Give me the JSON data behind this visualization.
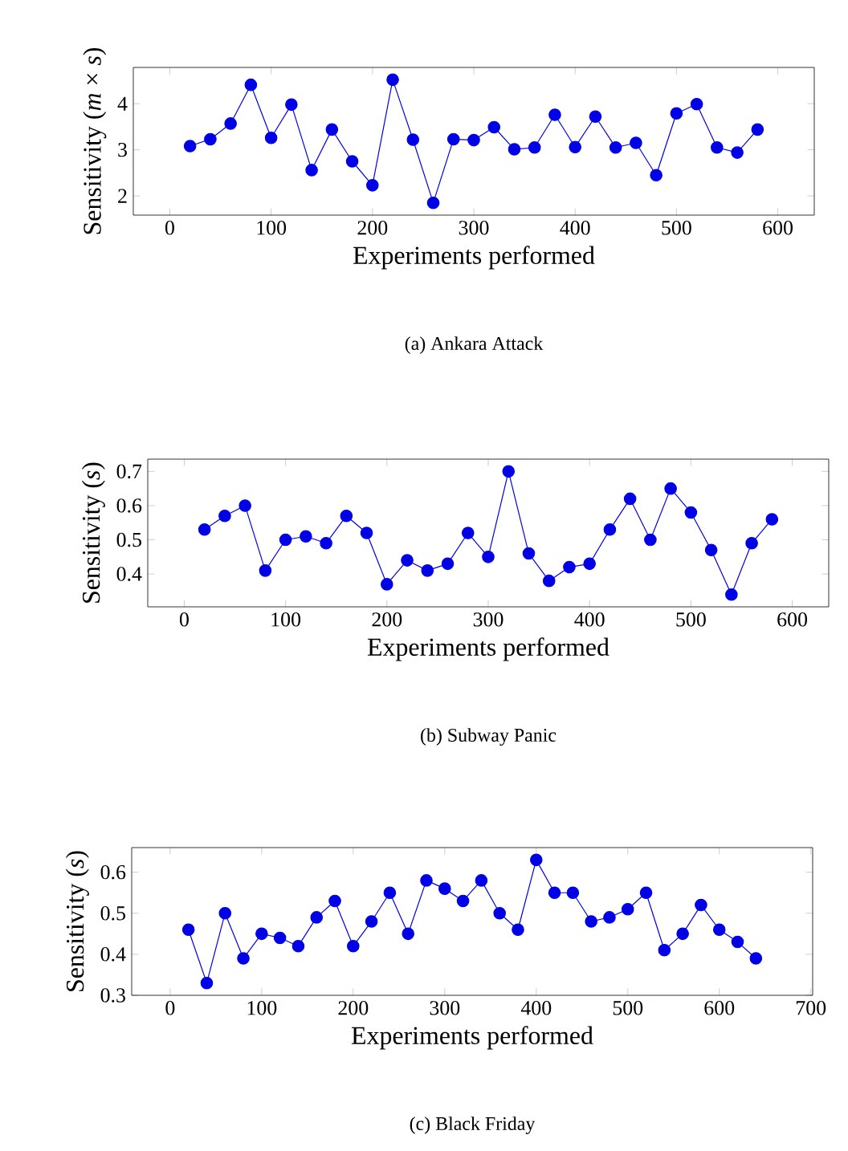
{
  "chart_data": [
    {
      "type": "line",
      "title": "(a) Ankara Attack",
      "xlabel": "Experiments performed",
      "ylabel": "Sensitivity (*m* × *s*)",
      "color": "#0000e6",
      "marker": "circle",
      "line_style": "solid",
      "grid": false,
      "xlim": [
        -36,
        636
      ],
      "ylim": [
        1.583,
        4.787
      ],
      "xticks": [
        0,
        100,
        200,
        300,
        400,
        500,
        600
      ],
      "yticks": [
        2,
        3,
        4
      ],
      "x": [
        20,
        40,
        60,
        80,
        100,
        120,
        140,
        160,
        180,
        200,
        220,
        240,
        260,
        280,
        300,
        320,
        340,
        360,
        380,
        400,
        420,
        440,
        460,
        480,
        500,
        520,
        540,
        560,
        580
      ],
      "values": [
        3.08,
        3.23,
        3.57,
        4.41,
        3.26,
        3.98,
        2.56,
        3.44,
        2.75,
        2.23,
        4.52,
        3.22,
        1.85,
        3.23,
        3.21,
        3.49,
        3.01,
        3.05,
        3.76,
        3.06,
        3.72,
        3.05,
        3.15,
        2.45,
        3.79,
        3.99,
        3.05,
        2.94,
        3.44
      ]
    },
    {
      "type": "line",
      "title": "(b) Subway Panic",
      "xlabel": "Experiments performed",
      "ylabel": "Sensitivity (*s*)",
      "color": "#0000e6",
      "marker": "circle",
      "line_style": "solid",
      "grid": false,
      "xlim": [
        -36,
        636
      ],
      "ylim": [
        0.304,
        0.736
      ],
      "xticks": [
        0,
        100,
        200,
        300,
        400,
        500,
        600
      ],
      "yticks": [
        0.4,
        0.5,
        0.6,
        0.7
      ],
      "x": [
        20,
        40,
        60,
        80,
        100,
        120,
        140,
        160,
        180,
        200,
        220,
        240,
        260,
        280,
        300,
        320,
        340,
        360,
        380,
        400,
        420,
        440,
        460,
        480,
        500,
        520,
        540,
        560,
        580
      ],
      "values": [
        0.53,
        0.57,
        0.6,
        0.41,
        0.5,
        0.51,
        0.49,
        0.57,
        0.52,
        0.37,
        0.44,
        0.41,
        0.43,
        0.52,
        0.45,
        0.7,
        0.46,
        0.38,
        0.42,
        0.43,
        0.53,
        0.62,
        0.5,
        0.65,
        0.58,
        0.47,
        0.34,
        0.49,
        0.56
      ]
    },
    {
      "type": "line",
      "title": "(c) Black Friday",
      "xlabel": "Experiments performed",
      "ylabel": "Sensitivity (*s*)",
      "color": "#0000e6",
      "marker": "circle",
      "line_style": "solid",
      "grid": false,
      "xlim": [
        -42,
        702
      ],
      "ylim": [
        0.3,
        0.66
      ],
      "xticks": [
        0,
        100,
        200,
        300,
        400,
        500,
        600,
        700
      ],
      "yticks": [
        0.3,
        0.4,
        0.5,
        0.6
      ],
      "x": [
        20,
        40,
        60,
        80,
        100,
        120,
        140,
        160,
        180,
        200,
        220,
        240,
        260,
        280,
        300,
        320,
        340,
        360,
        380,
        400,
        420,
        440,
        460,
        480,
        500,
        520,
        540,
        560,
        580,
        600,
        620,
        640
      ],
      "values": [
        0.46,
        0.33,
        0.5,
        0.39,
        0.45,
        0.44,
        0.42,
        0.49,
        0.53,
        0.42,
        0.48,
        0.55,
        0.45,
        0.58,
        0.56,
        0.53,
        0.58,
        0.5,
        0.46,
        0.63,
        0.55,
        0.55,
        0.48,
        0.49,
        0.51,
        0.55,
        0.41,
        0.45,
        0.52,
        0.46,
        0.43,
        0.39
      ]
    }
  ]
}
